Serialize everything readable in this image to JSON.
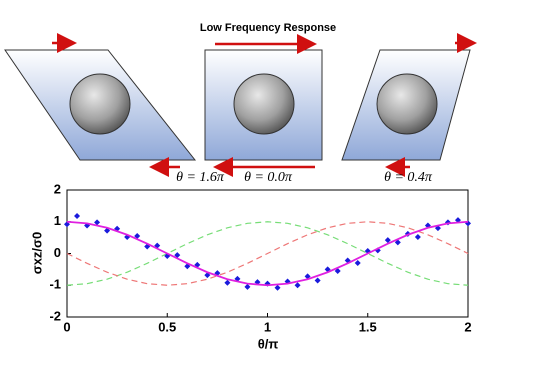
{
  "diagram": {
    "title": "Low Frequency Response",
    "panels": [
      {
        "label": "θ = 1.6π"
      },
      {
        "label": "θ = 0.0π"
      },
      {
        "label": "θ = 0.4π"
      }
    ]
  },
  "chart_data": {
    "type": "line",
    "x_label": "θ/π",
    "y_label": "σxz/σ0",
    "xlim": [
      0,
      2
    ],
    "ylim": [
      -2,
      2
    ],
    "xticks": [
      0,
      0.5,
      1,
      1.5,
      2
    ],
    "yticks": [
      -2,
      -1,
      0,
      1,
      2
    ],
    "grid": false,
    "series": [
      {
        "style": "line",
        "color": "#6a6a90",
        "x": [
          0,
          0.1,
          0.2,
          0.3,
          0.4,
          0.5,
          0.6,
          0.7,
          0.8,
          0.9,
          1,
          1.1,
          1.2,
          1.3,
          1.4,
          1.5,
          1.6,
          1.7,
          1.8,
          1.9,
          2
        ],
        "values": [
          -1,
          -0.95,
          -0.81,
          -0.59,
          -0.31,
          0,
          0.31,
          0.59,
          0.81,
          0.95,
          1,
          0.95,
          0.81,
          0.59,
          0.31,
          0,
          -0.31,
          -0.59,
          -0.81,
          -0.95,
          -1
        ],
        "dash": true,
        "stroke": "#77dd77"
      },
      {
        "style": "line",
        "color": "#ee7777",
        "x": [
          0,
          0.1,
          0.2,
          0.3,
          0.4,
          0.5,
          0.6,
          0.7,
          0.8,
          0.9,
          1,
          1.1,
          1.2,
          1.3,
          1.4,
          1.5,
          1.6,
          1.7,
          1.8,
          1.9,
          2
        ],
        "values": [
          0,
          -0.31,
          -0.59,
          -0.81,
          -0.95,
          -1,
          -0.95,
          -0.81,
          -0.59,
          -0.31,
          0,
          0.31,
          0.59,
          0.81,
          0.95,
          1,
          0.95,
          0.81,
          0.59,
          0.31,
          0
        ],
        "dash": true
      },
      {
        "style": "scatter",
        "color": "#1a1adc",
        "x": [
          0,
          0.05,
          0.1,
          0.15,
          0.2,
          0.25,
          0.3,
          0.35,
          0.4,
          0.45,
          0.5,
          0.55,
          0.6,
          0.65,
          0.7,
          0.75,
          0.8,
          0.85,
          0.9,
          0.95,
          1,
          1.05,
          1.1,
          1.15,
          1.2,
          1.25,
          1.3,
          1.35,
          1.4,
          1.45,
          1.5,
          1.55,
          1.6,
          1.65,
          1.7,
          1.75,
          1.8,
          1.85,
          1.9,
          1.95,
          2
        ],
        "values": [
          0.92,
          1.18,
          0.88,
          0.98,
          0.72,
          0.78,
          0.52,
          0.55,
          0.22,
          0.25,
          -0.08,
          -0.05,
          -0.4,
          -0.36,
          -0.68,
          -0.62,
          -0.92,
          -0.8,
          -1.05,
          -0.9,
          -0.95,
          -1.08,
          -0.88,
          -1.0,
          -0.72,
          -0.85,
          -0.5,
          -0.55,
          -0.22,
          -0.3,
          0.08,
          0.1,
          0.42,
          0.35,
          0.62,
          0.52,
          0.88,
          0.8,
          0.98,
          1.05,
          0.95
        ]
      },
      {
        "style": "line",
        "color": "#e020e0",
        "x": [
          0,
          0.1,
          0.2,
          0.3,
          0.4,
          0.5,
          0.6,
          0.7,
          0.8,
          0.9,
          1,
          1.1,
          1.2,
          1.3,
          1.4,
          1.5,
          1.6,
          1.7,
          1.8,
          1.9,
          2
        ],
        "values": [
          1,
          0.95,
          0.81,
          0.59,
          0.31,
          0,
          -0.31,
          -0.59,
          -0.81,
          -0.95,
          -1,
          -0.95,
          -0.81,
          -0.59,
          -0.31,
          0,
          0.31,
          0.59,
          0.81,
          0.95,
          1
        ],
        "dash": false
      }
    ]
  }
}
